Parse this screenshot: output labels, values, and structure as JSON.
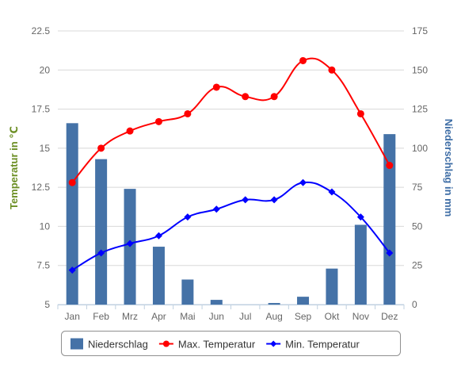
{
  "chart_data": {
    "type": "bar+line",
    "categories": [
      "Jan",
      "Feb",
      "Mrz",
      "Apr",
      "Mai",
      "Jun",
      "Jul",
      "Aug",
      "Sep",
      "Okt",
      "Nov",
      "Dez"
    ],
    "y_left": {
      "label": "Temperatur in ℃",
      "min": 5,
      "max": 22.5,
      "ticks": [
        "5",
        "7.5",
        "10",
        "12.5",
        "15",
        "17.5",
        "20",
        "22.5"
      ],
      "tick_values": [
        5,
        7.5,
        10,
        12.5,
        15,
        17.5,
        20,
        22.5
      ],
      "color": "#6b8e23"
    },
    "y_right": {
      "label": "Niederschlag in mm",
      "min": 0,
      "max": 175,
      "ticks": [
        "0",
        "25",
        "50",
        "75",
        "100",
        "125",
        "150",
        "175"
      ],
      "tick_values": [
        0,
        25,
        50,
        75,
        100,
        125,
        150,
        175
      ],
      "color": "#3f6ea6"
    },
    "series": [
      {
        "name": "Niederschlag",
        "type": "bar",
        "axis": "right",
        "color": "#4572a7",
        "values": [
          116,
          93,
          74,
          37,
          16,
          3,
          0,
          1,
          5,
          23,
          51,
          109
        ]
      },
      {
        "name": "Max. Temperatur",
        "type": "line",
        "axis": "left",
        "color": "#ff0000",
        "marker": "circle",
        "values": [
          12.8,
          15.0,
          16.1,
          16.7,
          17.2,
          18.9,
          18.3,
          18.3,
          20.6,
          20.0,
          17.2,
          13.9
        ]
      },
      {
        "name": "Min. Temperatur",
        "type": "line",
        "axis": "left",
        "color": "#0000ff",
        "marker": "diamond",
        "values": [
          7.2,
          8.3,
          8.9,
          9.4,
          10.6,
          11.1,
          11.7,
          11.7,
          12.8,
          12.2,
          10.6,
          8.3
        ]
      }
    ],
    "grid": true,
    "legend": "bottom-center"
  }
}
